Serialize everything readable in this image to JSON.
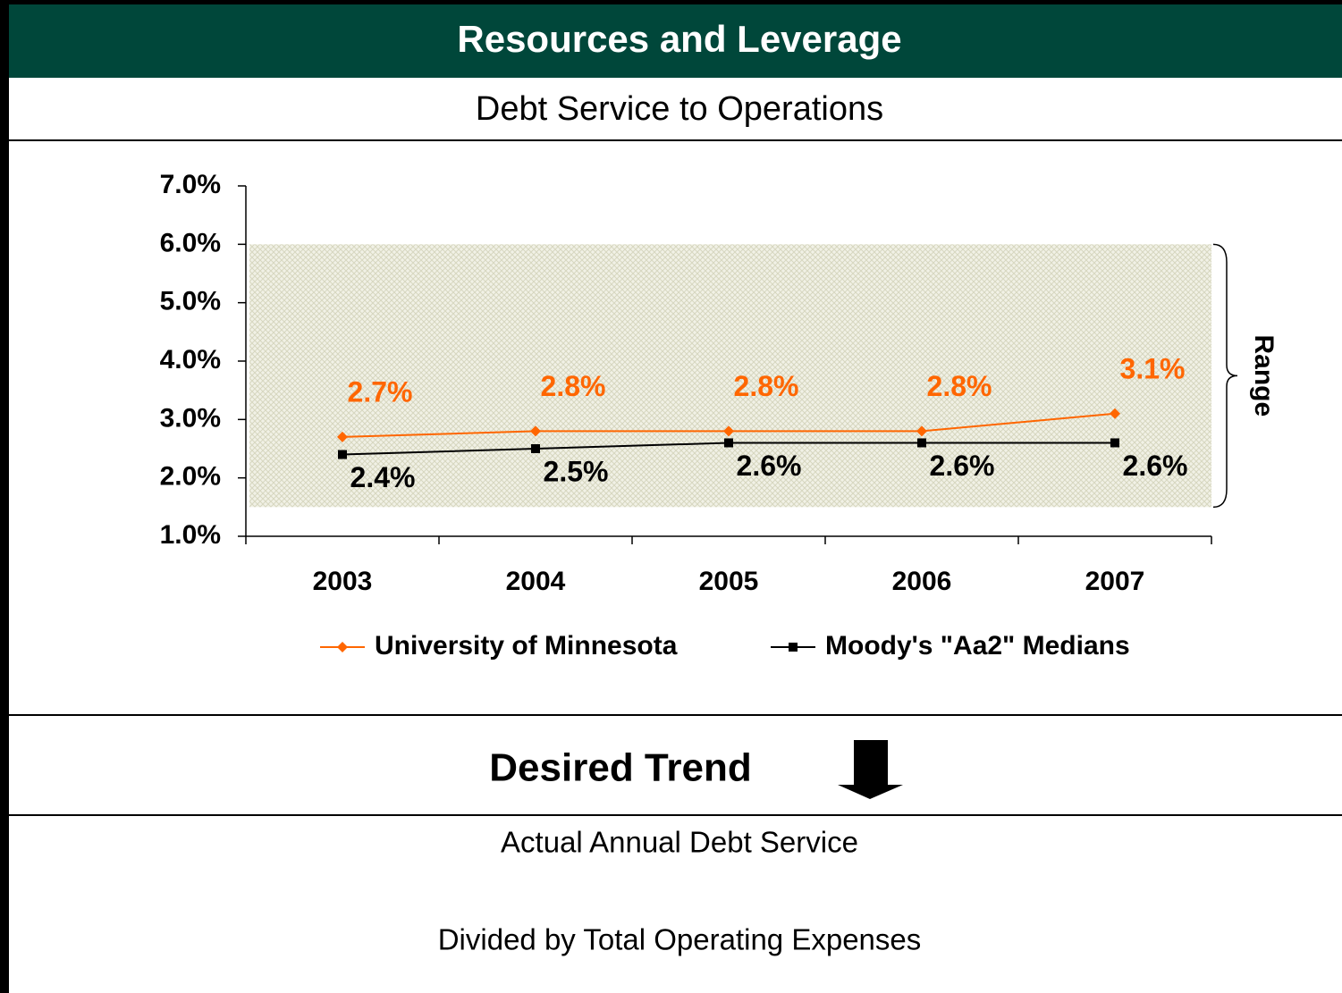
{
  "header": {
    "title": "Resources and Leverage",
    "subtitle": "Debt Service to Operations"
  },
  "chart_data": {
    "type": "line",
    "categories": [
      "2003",
      "2004",
      "2005",
      "2006",
      "2007"
    ],
    "series": [
      {
        "name": "University of Minnesota",
        "color": "#ff6600",
        "marker": "diamond",
        "values": [
          2.7,
          2.8,
          2.8,
          2.8,
          3.1
        ],
        "value_labels": [
          "2.7%",
          "2.8%",
          "2.8%",
          "2.8%",
          "3.1%"
        ]
      },
      {
        "name": "Moody's \"Aa2\" Medians",
        "color": "#000000",
        "marker": "square",
        "values": [
          2.4,
          2.5,
          2.6,
          2.6,
          2.6
        ],
        "value_labels": [
          "2.4%",
          "2.5%",
          "2.6%",
          "2.6%",
          "2.6%"
        ]
      }
    ],
    "ylim": [
      1,
      7
    ],
    "yticks": [
      {
        "value": 1,
        "label": "1.0%"
      },
      {
        "value": 2,
        "label": "2.0%"
      },
      {
        "value": 3,
        "label": "3.0%"
      },
      {
        "value": 4,
        "label": "4.0%"
      },
      {
        "value": 5,
        "label": "5.0%"
      },
      {
        "value": 6,
        "label": "6.0%"
      },
      {
        "value": 7,
        "label": "7.0%"
      }
    ],
    "range": {
      "label": "Range",
      "band": [
        1.5,
        6
      ]
    },
    "legend": "bottom"
  },
  "trend": {
    "label": "Desired Trend",
    "direction": "down"
  },
  "definition": {
    "numerator": "Actual Annual Debt Service",
    "denominator": "Divided by Total Operating Expenses"
  }
}
